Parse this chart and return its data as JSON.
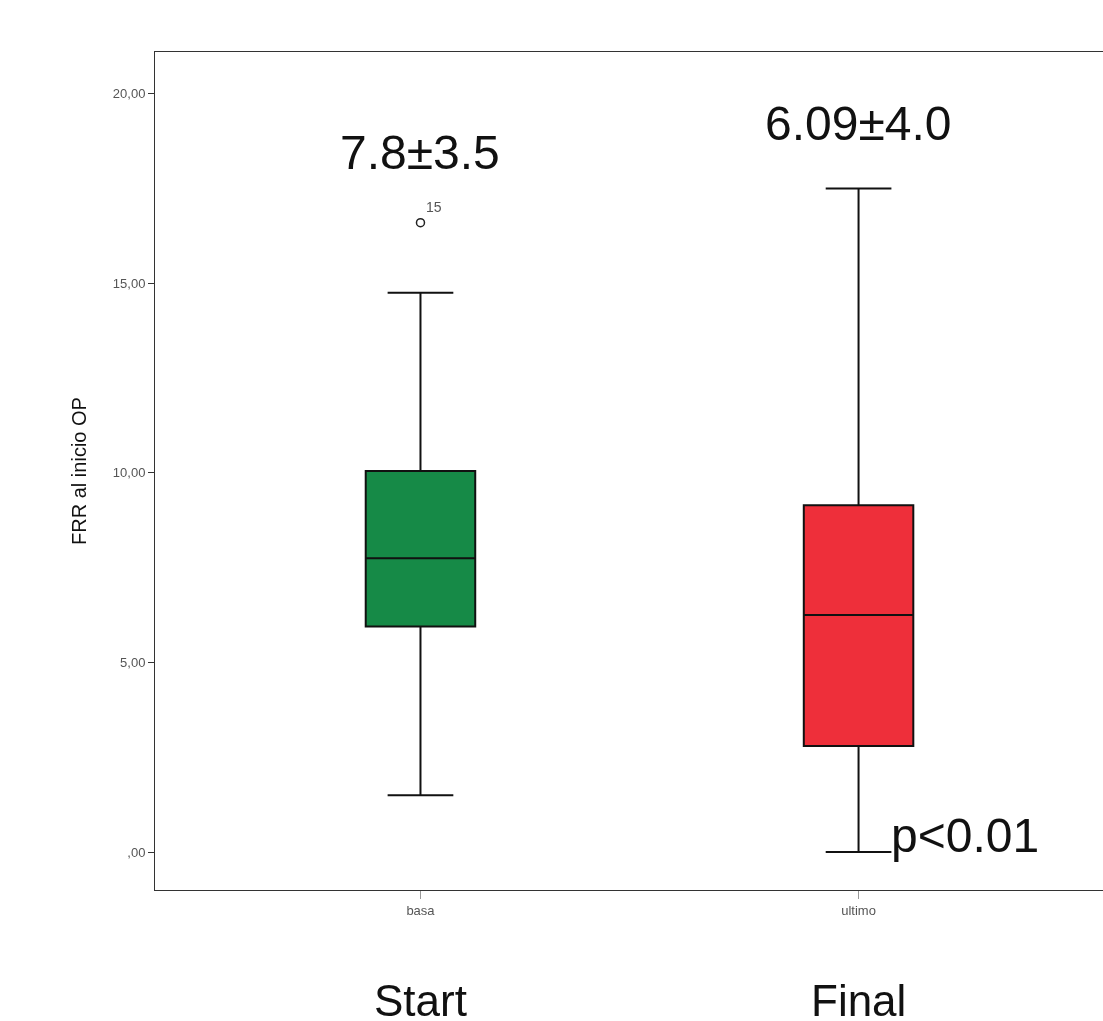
{
  "chart_data": {
    "type": "box",
    "ylabel": "FRR al inicio OP",
    "categories": [
      "basa",
      "ultimo"
    ],
    "colors": [
      "#168a47",
      "#ee2f3a"
    ],
    "boxes": [
      {
        "low": 1.5,
        "q1": 5.95,
        "median": 7.75,
        "q3": 10.05,
        "high": 14.75,
        "outliers": [
          16.6
        ]
      },
      {
        "low": 0,
        "q1": 2.8,
        "median": 6.25,
        "q3": 9.15,
        "high": 17.5
      }
    ],
    "ylim": [
      -1,
      21.1
    ],
    "yticks": [
      {
        "value": 0,
        "label": ",00"
      },
      {
        "value": 5,
        "label": "5,00"
      },
      {
        "value": 10,
        "label": "10,00"
      },
      {
        "value": 15,
        "label": "15,00"
      },
      {
        "value": 20,
        "label": "20,00"
      }
    ],
    "grid": false,
    "annotations": [
      "15",
      "7.8±3.5",
      "6.09±4.0",
      "p<0.01",
      "Start",
      "Final"
    ]
  }
}
